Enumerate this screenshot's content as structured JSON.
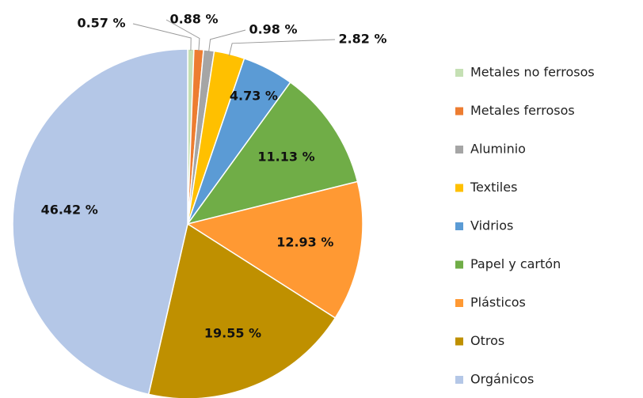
{
  "chart_data": {
    "type": "pie",
    "categories": [
      "Metales no ferrosos",
      "Metales ferrosos",
      "Aluminio",
      "Textiles",
      "Vidrios",
      "Papel y cartón",
      "Plásticos",
      "Otros",
      "Orgánicos"
    ],
    "values": [
      0.57,
      0.88,
      0.98,
      2.82,
      4.73,
      11.13,
      12.93,
      19.55,
      46.42
    ],
    "value_labels": [
      "0.57 %",
      "0.88 %",
      "0.98 %",
      "2.82 %",
      "4.73 %",
      "11.13 %",
      "12.93 %",
      "19.55 %",
      "46.42 %"
    ],
    "colors": [
      "#c5e0b4",
      "#ed7d31",
      "#a5a5a5",
      "#ffc000",
      "#5b9bd5",
      "#70ad47",
      "#ff9933",
      "#bf9000",
      "#b4c7e7"
    ],
    "legend": "right"
  }
}
